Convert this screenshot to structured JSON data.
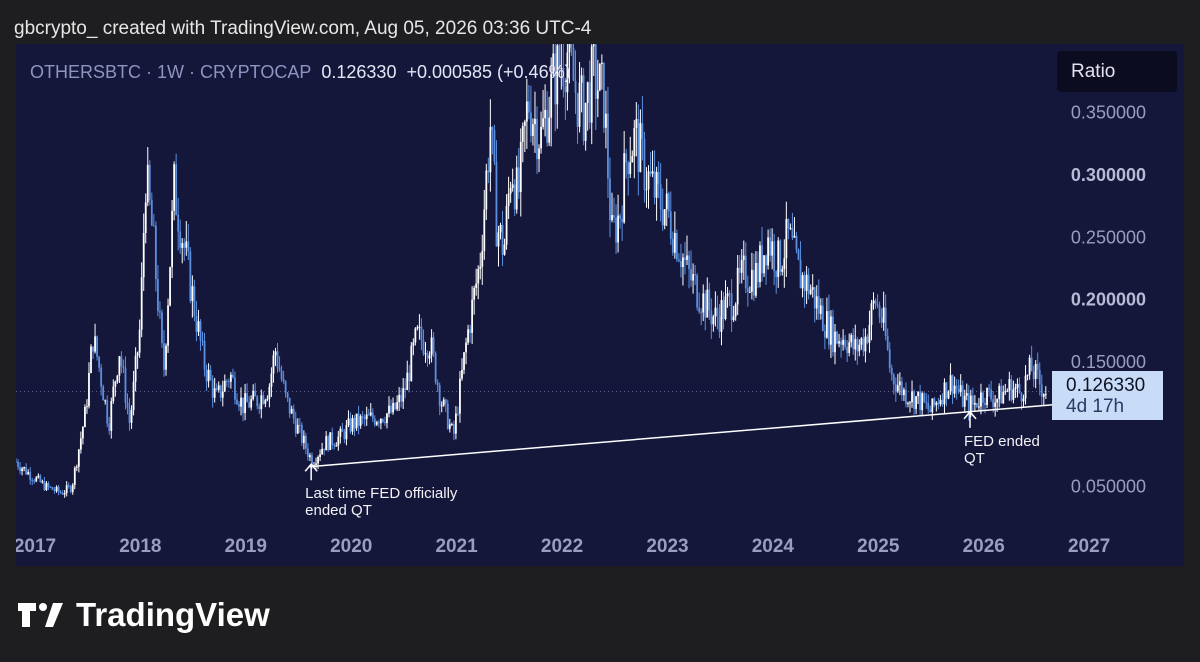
{
  "header": {
    "text": "gbcrypto_ created with TradingView.com, Aug 05, 2026 03:36 UTC-4"
  },
  "legend": {
    "symbol": "OTHERSBTC · 1W · CRYPTOCAP",
    "price": "0.126330",
    "change": "+0.000585 (+0.46%)"
  },
  "ratio_button": {
    "label": "Ratio"
  },
  "price_tag": {
    "price": "0.126330",
    "countdown": "4d 17h"
  },
  "brand": {
    "name": "TradingView"
  },
  "colors": {
    "background": "#1e1e21",
    "panel": "#15173a",
    "up_candle": "#ffffff",
    "down_candle": "#5b8fe0",
    "trendline": "#ffffff",
    "price_tag": "#c8dcf7"
  },
  "chart_data": {
    "type": "candlestick",
    "symbol": "OTHERSBTC",
    "timeframe": "1W",
    "exchange": "CRYPTOCAP",
    "x_ticks": [
      "2017",
      "2018",
      "2019",
      "2020",
      "2021",
      "2022",
      "2023",
      "2024",
      "2025",
      "2026",
      "2027"
    ],
    "y_ticks": [
      {
        "value": 0.05,
        "label": "0.050000",
        "bold": false
      },
      {
        "value": 0.15,
        "label": "0.150000",
        "bold": false
      },
      {
        "value": 0.2,
        "label": "0.200000",
        "bold": true
      },
      {
        "value": 0.25,
        "label": "0.250000",
        "bold": false
      },
      {
        "value": 0.3,
        "label": "0.300000",
        "bold": true
      },
      {
        "value": 0.35,
        "label": "0.350000",
        "bold": false
      }
    ],
    "ylim": [
      0.0,
      0.405
    ],
    "xlim": [
      2016.82,
      2027.9
    ],
    "last_price": 0.12633,
    "close_path": [
      [
        2016.82,
        0.07
      ],
      [
        2016.95,
        0.06
      ],
      [
        2017.1,
        0.05
      ],
      [
        2017.25,
        0.045
      ],
      [
        2017.35,
        0.05
      ],
      [
        2017.48,
        0.11
      ],
      [
        2017.55,
        0.17
      ],
      [
        2017.6,
        0.15
      ],
      [
        2017.7,
        0.1
      ],
      [
        2017.8,
        0.16
      ],
      [
        2017.9,
        0.1
      ],
      [
        2018.0,
        0.18
      ],
      [
        2018.05,
        0.3
      ],
      [
        2018.12,
        0.25
      ],
      [
        2018.22,
        0.14
      ],
      [
        2018.32,
        0.29
      ],
      [
        2018.42,
        0.24
      ],
      [
        2018.52,
        0.19
      ],
      [
        2018.6,
        0.15
      ],
      [
        2018.72,
        0.12
      ],
      [
        2018.85,
        0.14
      ],
      [
        2018.97,
        0.115
      ],
      [
        2019.12,
        0.12
      ],
      [
        2019.22,
        0.13
      ],
      [
        2019.28,
        0.16
      ],
      [
        2019.38,
        0.12
      ],
      [
        2019.5,
        0.095
      ],
      [
        2019.63,
        0.07
      ],
      [
        2019.75,
        0.085
      ],
      [
        2019.9,
        0.09
      ],
      [
        2020.0,
        0.1
      ],
      [
        2020.2,
        0.105
      ],
      [
        2020.4,
        0.11
      ],
      [
        2020.5,
        0.125
      ],
      [
        2020.62,
        0.17
      ],
      [
        2020.75,
        0.165
      ],
      [
        2020.85,
        0.12
      ],
      [
        2020.97,
        0.09
      ],
      [
        2021.1,
        0.17
      ],
      [
        2021.22,
        0.23
      ],
      [
        2021.32,
        0.34
      ],
      [
        2021.38,
        0.26
      ],
      [
        2021.45,
        0.24
      ],
      [
        2021.52,
        0.31
      ],
      [
        2021.58,
        0.28
      ],
      [
        2021.68,
        0.36
      ],
      [
        2021.8,
        0.33
      ],
      [
        2021.93,
        0.38
      ],
      [
        2022.05,
        0.4
      ],
      [
        2022.12,
        0.37
      ],
      [
        2022.2,
        0.35
      ],
      [
        2022.3,
        0.38
      ],
      [
        2022.4,
        0.36
      ],
      [
        2022.47,
        0.25
      ],
      [
        2022.55,
        0.27
      ],
      [
        2022.62,
        0.32
      ],
      [
        2022.7,
        0.33
      ],
      [
        2022.8,
        0.3
      ],
      [
        2022.92,
        0.28
      ],
      [
        2023.0,
        0.27
      ],
      [
        2023.08,
        0.25
      ],
      [
        2023.2,
        0.22
      ],
      [
        2023.3,
        0.205
      ],
      [
        2023.45,
        0.185
      ],
      [
        2023.62,
        0.2
      ],
      [
        2023.72,
        0.22
      ],
      [
        2023.85,
        0.22
      ],
      [
        2023.95,
        0.25
      ],
      [
        2024.05,
        0.23
      ],
      [
        2024.15,
        0.25
      ],
      [
        2024.25,
        0.22
      ],
      [
        2024.35,
        0.21
      ],
      [
        2024.45,
        0.19
      ],
      [
        2024.58,
        0.17
      ],
      [
        2024.68,
        0.17
      ],
      [
        2024.78,
        0.16
      ],
      [
        2024.88,
        0.17
      ],
      [
        2024.97,
        0.2
      ],
      [
        2025.05,
        0.18
      ],
      [
        2025.12,
        0.14
      ],
      [
        2025.25,
        0.125
      ],
      [
        2025.38,
        0.12
      ],
      [
        2025.5,
        0.11
      ],
      [
        2025.6,
        0.125
      ],
      [
        2025.7,
        0.135
      ],
      [
        2025.8,
        0.12
      ],
      [
        2025.9,
        0.115
      ],
      [
        2026.0,
        0.125
      ],
      [
        2026.12,
        0.12
      ],
      [
        2026.25,
        0.13
      ],
      [
        2026.35,
        0.125
      ],
      [
        2026.45,
        0.145
      ],
      [
        2026.55,
        0.13
      ],
      [
        2026.6,
        0.126
      ]
    ],
    "trendline": [
      [
        2019.6,
        0.066
      ],
      [
        2026.7,
        0.116
      ]
    ],
    "annotations": [
      {
        "x": 2019.62,
        "y": 0.068,
        "lines": [
          "Last time FED officially",
          "ended QT"
        ]
      },
      {
        "x": 2025.87,
        "y": 0.11,
        "lines": [
          "FED ended",
          "QT"
        ]
      }
    ]
  }
}
